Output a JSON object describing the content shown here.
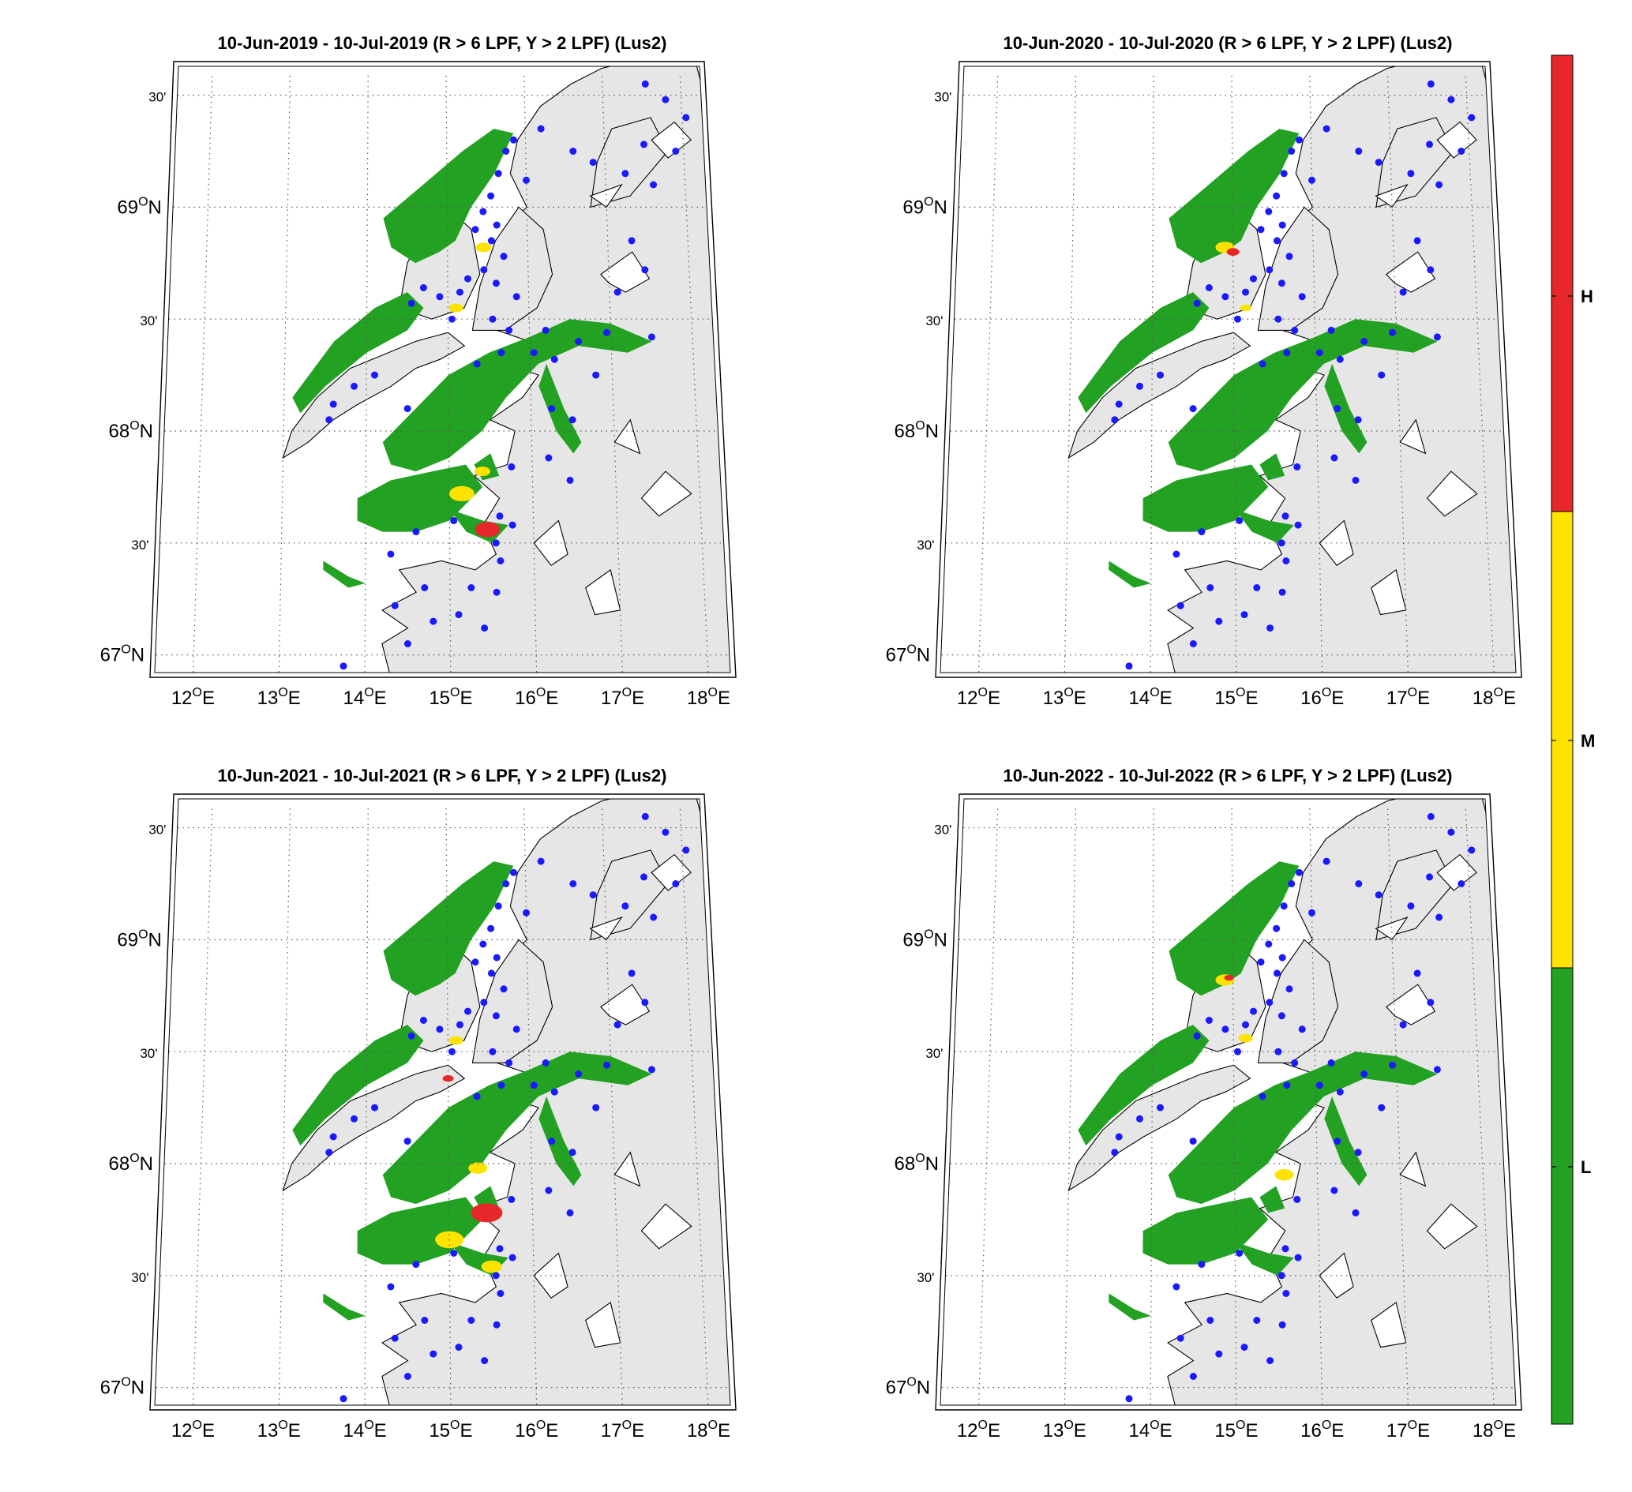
{
  "panels": [
    {
      "title": "10-Jun-2019  - 10-Jul-2019  (R > 6 LPF, Y > 2 LPF) (Lus2)",
      "zones": [
        {
          "level": "M",
          "lon": 15.45,
          "lat": 68.82,
          "r": 10
        },
        {
          "level": "M",
          "lon": 15.1,
          "lat": 68.55,
          "r": 9
        },
        {
          "level": "M",
          "lon": 15.15,
          "lat": 67.72,
          "r": 16
        },
        {
          "level": "H",
          "lon": 15.45,
          "lat": 67.56,
          "r": 16
        },
        {
          "level": "M",
          "lon": 15.4,
          "lat": 67.82,
          "r": 10
        }
      ]
    },
    {
      "title": "10-Jun-2020  - 10-Jul-2020  (R > 6 LPF, Y > 2 LPF) (Lus2)",
      "zones": [
        {
          "level": "M",
          "lon": 14.9,
          "lat": 68.82,
          "r": 12
        },
        {
          "level": "H",
          "lon": 15.0,
          "lat": 68.8,
          "r": 8
        },
        {
          "level": "M",
          "lon": 15.15,
          "lat": 68.55,
          "r": 7
        }
      ]
    },
    {
      "title": "10-Jun-2021  - 10-Jul-2021  (R > 6 LPF, Y > 2 LPF) (Lus2)",
      "zones": [
        {
          "level": "M",
          "lon": 15.1,
          "lat": 68.55,
          "r": 9
        },
        {
          "level": "H",
          "lon": 15.0,
          "lat": 68.38,
          "r": 7
        },
        {
          "level": "M",
          "lon": 15.35,
          "lat": 67.98,
          "r": 12
        },
        {
          "level": "H",
          "lon": 15.45,
          "lat": 67.78,
          "r": 20
        },
        {
          "level": "M",
          "lon": 15.0,
          "lat": 67.66,
          "r": 18
        },
        {
          "level": "M",
          "lon": 15.5,
          "lat": 67.54,
          "r": 13
        }
      ]
    },
    {
      "title": "10-Jun-2022  - 10-Jul-2022  (R > 6 LPF, Y > 2 LPF) (Lus2)",
      "zones": [
        {
          "level": "M",
          "lon": 14.9,
          "lat": 68.82,
          "r": 12
        },
        {
          "level": "H",
          "lon": 14.95,
          "lat": 68.83,
          "r": 6
        },
        {
          "level": "M",
          "lon": 15.15,
          "lat": 68.56,
          "r": 9
        },
        {
          "level": "M",
          "lon": 15.6,
          "lat": 67.95,
          "r": 12
        }
      ]
    }
  ],
  "map": {
    "lat_labels": [
      {
        "lat": 67.0,
        "text": "67ON"
      },
      {
        "lat": 67.5,
        "text": "30'"
      },
      {
        "lat": 68.0,
        "text": "68ON"
      },
      {
        "lat": 68.5,
        "text": "30'"
      },
      {
        "lat": 69.0,
        "text": "69ON"
      },
      {
        "lat": 69.5,
        "text": "30'"
      }
    ],
    "lon_labels": [
      {
        "lon": 12,
        "text": "12OE"
      },
      {
        "lon": 13,
        "text": "13OE"
      },
      {
        "lon": 14,
        "text": "14OE"
      },
      {
        "lon": 15,
        "text": "15OE"
      },
      {
        "lon": 16,
        "text": "16OE"
      },
      {
        "lon": 17,
        "text": "17OE"
      },
      {
        "lon": 18,
        "text": "18OE"
      }
    ],
    "stations": [
      [
        15.85,
        69.3
      ],
      [
        15.75,
        69.25
      ],
      [
        15.65,
        69.15
      ],
      [
        15.55,
        69.05
      ],
      [
        15.45,
        68.98
      ],
      [
        15.62,
        68.92
      ],
      [
        15.35,
        68.9
      ],
      [
        15.55,
        68.85
      ],
      [
        15.7,
        68.78
      ],
      [
        15.45,
        68.72
      ],
      [
        15.25,
        68.68
      ],
      [
        15.6,
        68.66
      ],
      [
        15.85,
        68.6
      ],
      [
        15.15,
        68.62
      ],
      [
        14.9,
        68.6
      ],
      [
        14.7,
        68.64
      ],
      [
        14.55,
        68.57
      ],
      [
        15.05,
        68.5
      ],
      [
        15.55,
        68.5
      ],
      [
        15.75,
        68.45
      ],
      [
        16.2,
        68.45
      ],
      [
        16.6,
        68.4
      ],
      [
        16.95,
        68.44
      ],
      [
        17.5,
        68.42
      ],
      [
        16.05,
        68.35
      ],
      [
        15.65,
        68.35
      ],
      [
        15.35,
        68.3
      ],
      [
        14.1,
        68.25
      ],
      [
        13.85,
        68.2
      ],
      [
        13.6,
        68.12
      ],
      [
        13.55,
        68.05
      ],
      [
        14.5,
        68.1
      ],
      [
        16.3,
        68.32
      ],
      [
        16.8,
        68.25
      ],
      [
        16.25,
        68.1
      ],
      [
        16.5,
        68.05
      ],
      [
        16.2,
        67.88
      ],
      [
        16.45,
        67.78
      ],
      [
        15.75,
        67.84
      ],
      [
        15.6,
        67.62
      ],
      [
        15.75,
        67.58
      ],
      [
        15.55,
        67.5
      ],
      [
        15.6,
        67.42
      ],
      [
        15.05,
        67.6
      ],
      [
        14.6,
        67.55
      ],
      [
        14.3,
        67.45
      ],
      [
        14.7,
        67.3
      ],
      [
        15.25,
        67.3
      ],
      [
        15.55,
        67.28
      ],
      [
        14.35,
        67.22
      ],
      [
        14.8,
        67.15
      ],
      [
        15.1,
        67.18
      ],
      [
        15.4,
        67.12
      ],
      [
        14.5,
        67.05
      ],
      [
        16.2,
        69.35
      ],
      [
        16.6,
        69.25
      ],
      [
        16.85,
        69.2
      ],
      [
        17.25,
        69.15
      ],
      [
        17.6,
        69.1
      ],
      [
        17.9,
        69.25
      ],
      [
        17.5,
        69.28
      ],
      [
        17.3,
        68.85
      ],
      [
        17.45,
        68.72
      ],
      [
        17.1,
        68.62
      ],
      [
        18.05,
        69.4
      ],
      [
        17.55,
        69.55
      ],
      [
        17.8,
        69.48
      ],
      [
        16.0,
        69.12
      ],
      [
        13.75,
        66.95
      ]
    ],
    "colorbar": {
      "levels": [
        {
          "label": "H",
          "color": "#e8272a"
        },
        {
          "label": "M",
          "color": "#ffe300"
        },
        {
          "label": "L",
          "color": "#22a122"
        }
      ]
    }
  }
}
